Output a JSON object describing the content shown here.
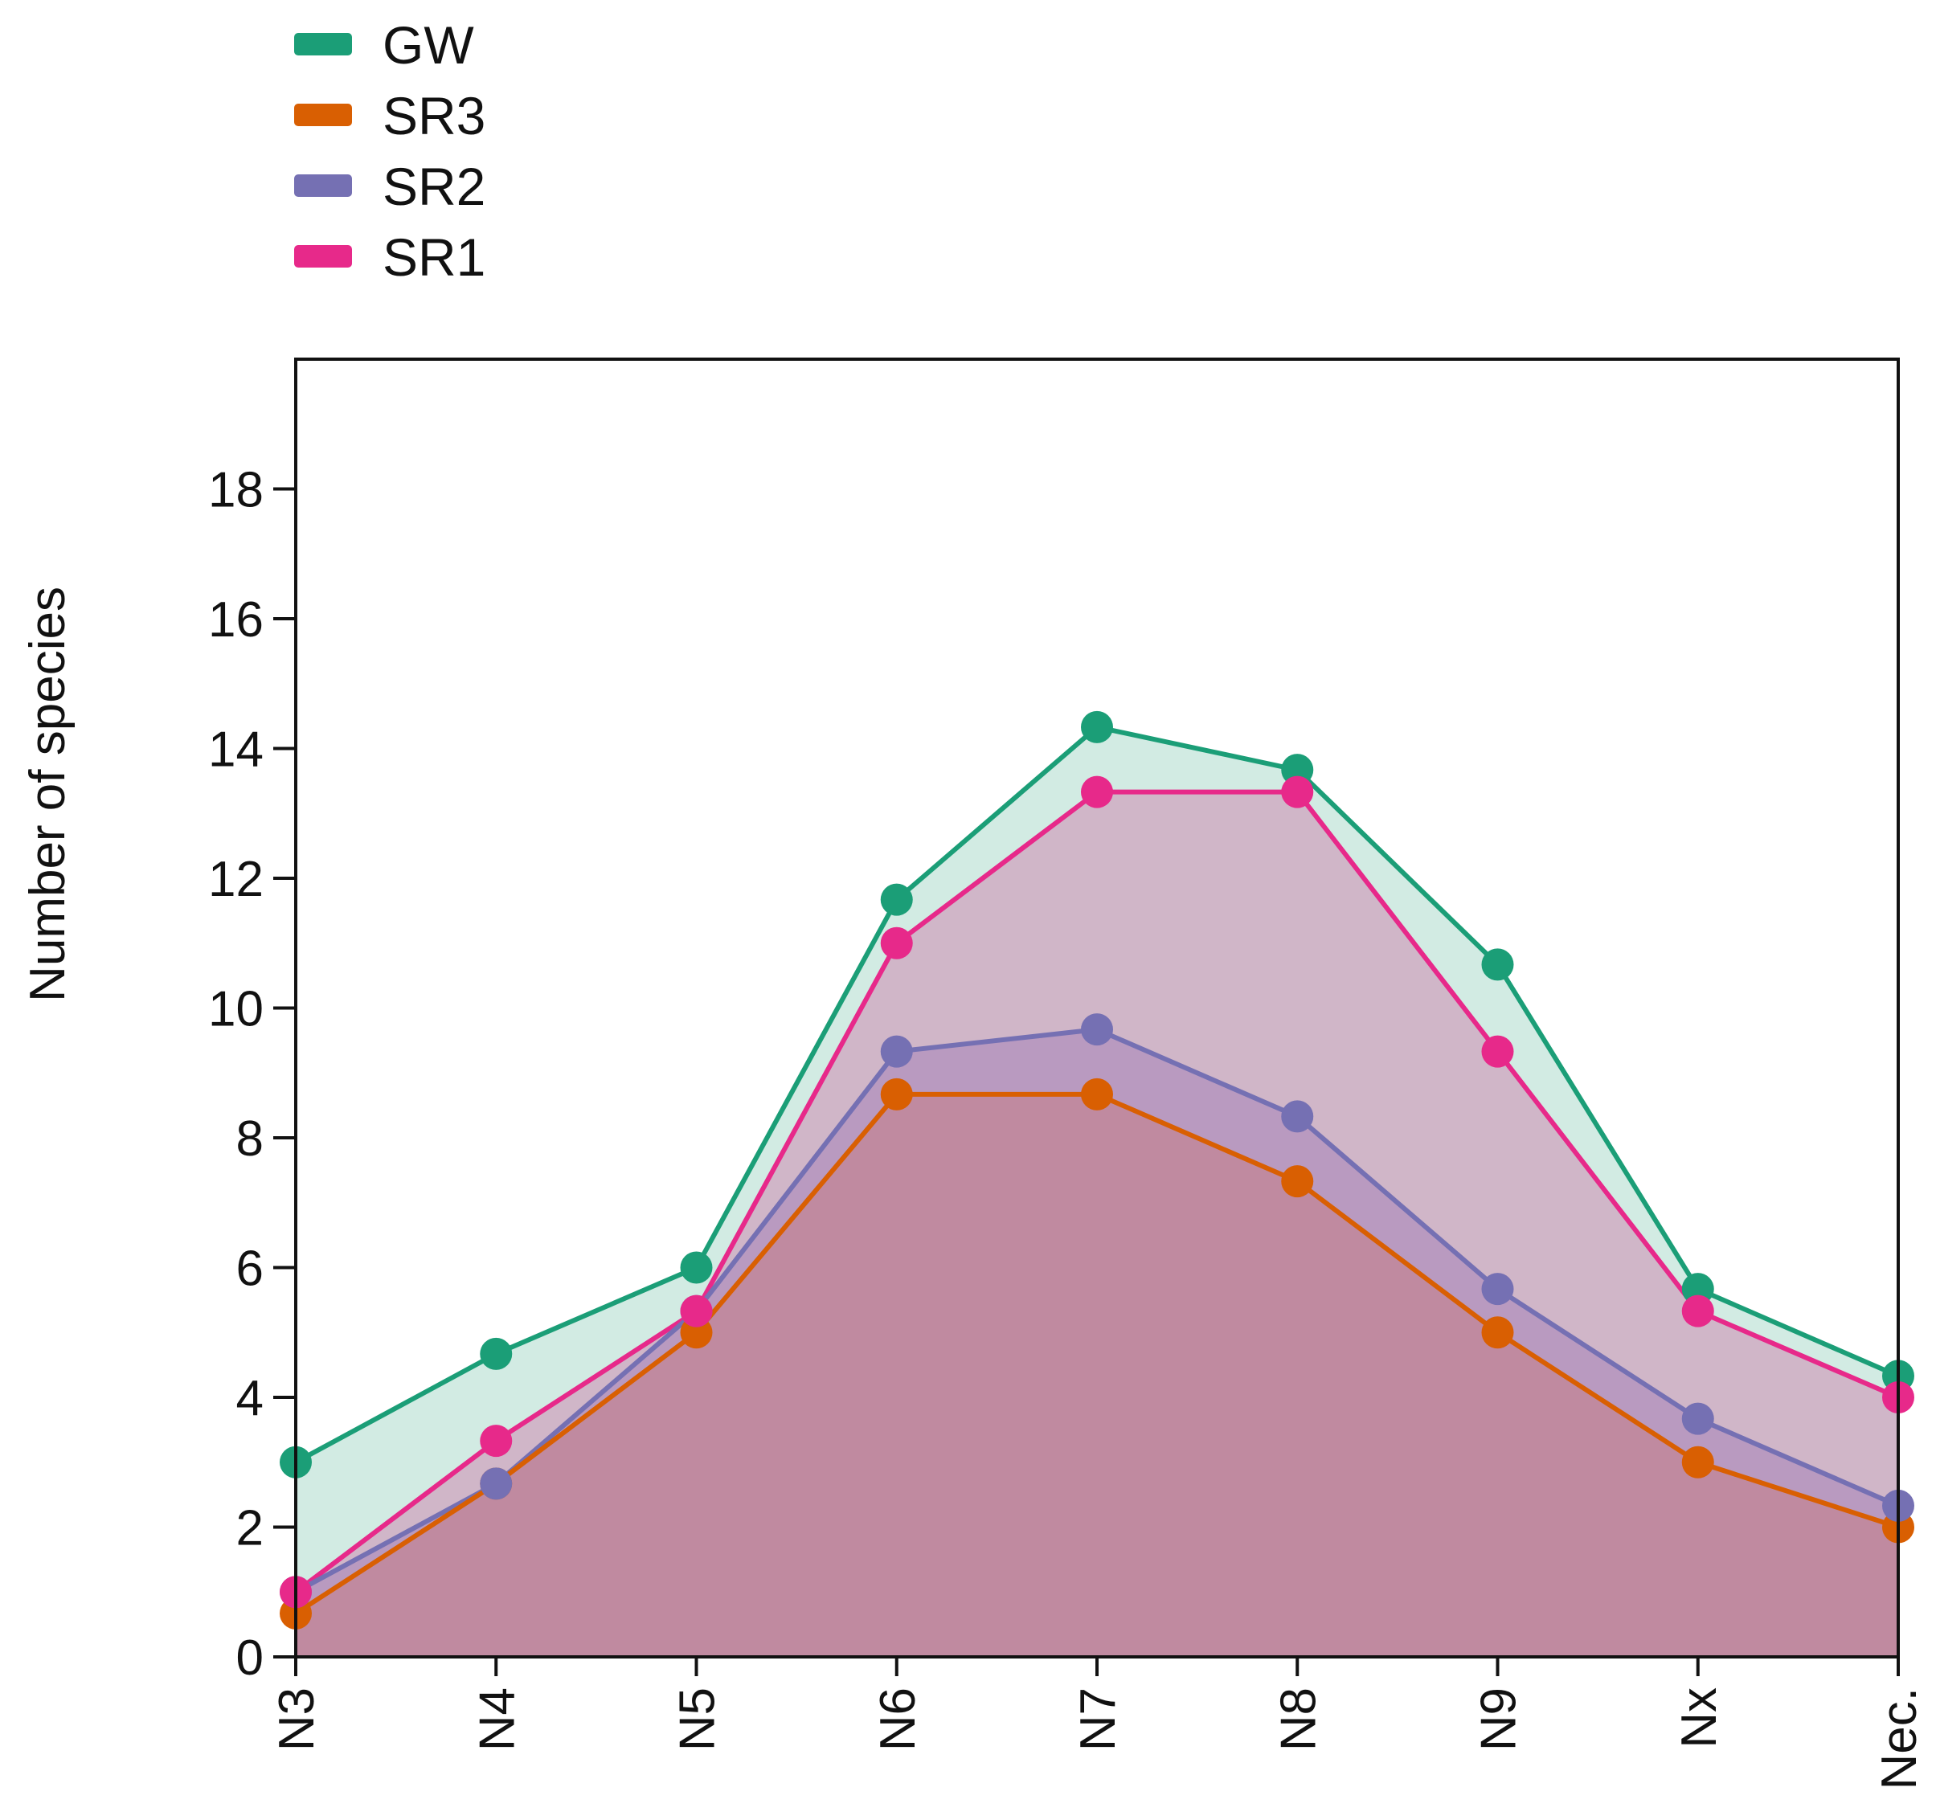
{
  "chart_data": {
    "type": "area",
    "title": "",
    "xlabel": "",
    "ylabel": "Number of species",
    "categories": [
      "N3",
      "N4",
      "N5",
      "N6",
      "N7",
      "N8",
      "N9",
      "Nx",
      "Nec."
    ],
    "ylim": [
      0,
      20
    ],
    "yticks": [
      0,
      2,
      4,
      6,
      8,
      10,
      12,
      14,
      16,
      18
    ],
    "legend_position": "top-left",
    "grid": false,
    "series": [
      {
        "name": "GW",
        "color": "#1b9e77",
        "fill": "#d2ebe3",
        "values": [
          3.0,
          4.67,
          6.0,
          11.67,
          14.33,
          13.67,
          10.67,
          5.67,
          4.33
        ]
      },
      {
        "name": "SR3",
        "color": "#d95f02",
        "fill": "#c08aa0",
        "values": [
          0.67,
          2.67,
          5.0,
          8.67,
          8.67,
          7.33,
          5.0,
          3.0,
          2.0
        ]
      },
      {
        "name": "SR2",
        "color": "#7570b3",
        "fill": "#b99ac0",
        "values": [
          1.0,
          2.67,
          5.33,
          9.33,
          9.67,
          8.33,
          5.67,
          3.67,
          2.33
        ]
      },
      {
        "name": "SR1",
        "color": "#e7298a",
        "fill": "#d0b6c8",
        "values": [
          1.0,
          3.33,
          5.33,
          11.0,
          13.33,
          13.33,
          9.33,
          5.33,
          4.0
        ]
      }
    ]
  }
}
